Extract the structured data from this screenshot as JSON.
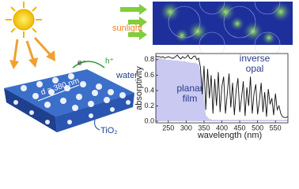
{
  "illustration": {
    "sunlight": "sunlight",
    "electron": "e⁻",
    "hole": "h⁺",
    "water": "water",
    "spacing": "d = 380 nm",
    "material": "TiO₂"
  },
  "chart_data": {
    "type": "line",
    "xlabel": "wavelength (nm)",
    "ylabel": "absorptivity",
    "xlim": [
      215,
      585
    ],
    "ylim": [
      -0.02,
      0.88
    ],
    "xticks": [
      250,
      300,
      350,
      400,
      450,
      500,
      550
    ],
    "yticks": [
      {
        "value": 0,
        "label": "0.0"
      },
      0.2,
      0.4,
      0.6,
      0.8
    ],
    "series": [
      {
        "name": "planar film",
        "color": "#c9c9f2",
        "fill": true,
        "x": [
          215,
          225,
          235,
          245,
          255,
          265,
          275,
          285,
          295,
          305,
          315,
          325,
          335,
          345,
          355,
          365,
          375,
          385,
          395,
          405,
          415,
          425,
          435,
          445,
          455,
          465,
          475,
          485,
          495,
          505,
          515,
          525,
          535,
          545,
          555,
          565,
          575,
          585
        ],
        "values": [
          0.83,
          0.82,
          0.81,
          0.8,
          0.8,
          0.79,
          0.79,
          0.78,
          0.78,
          0.77,
          0.76,
          0.76,
          0.74,
          0.55,
          0.08,
          0.03,
          0.02,
          0.02,
          0.02,
          0.02,
          0.02,
          0.02,
          0.02,
          0.02,
          0.02,
          0.02,
          0.02,
          0.02,
          0.02,
          0.02,
          0.02,
          0.02,
          0.02,
          0.02,
          0.02,
          0.02,
          0.02,
          0.02
        ]
      },
      {
        "name": "inverse opal",
        "color": "#111111",
        "fill": false,
        "x": [
          215,
          220,
          225,
          230,
          235,
          240,
          245,
          250,
          255,
          260,
          265,
          270,
          275,
          280,
          285,
          290,
          295,
          300,
          305,
          310,
          315,
          320,
          325,
          330,
          335,
          340,
          345,
          350,
          355,
          360,
          365,
          370,
          375,
          380,
          385,
          390,
          395,
          400,
          405,
          410,
          415,
          420,
          425,
          430,
          435,
          440,
          445,
          450,
          455,
          460,
          465,
          470,
          475,
          480,
          485,
          490,
          495,
          500,
          505,
          510,
          515,
          520,
          525,
          530,
          535,
          540,
          545,
          550,
          555,
          560,
          565,
          570,
          575,
          580,
          585
        ],
        "values": [
          0.85,
          0.84,
          0.84,
          0.83,
          0.84,
          0.82,
          0.83,
          0.84,
          0.83,
          0.82,
          0.82,
          0.84,
          0.86,
          0.83,
          0.81,
          0.84,
          0.82,
          0.83,
          0.86,
          0.82,
          0.81,
          0.84,
          0.85,
          0.8,
          0.82,
          0.7,
          0.35,
          0.72,
          0.15,
          0.68,
          0.3,
          0.6,
          0.1,
          0.55,
          0.2,
          0.64,
          0.12,
          0.45,
          0.58,
          0.1,
          0.35,
          0.62,
          0.18,
          0.5,
          0.08,
          0.4,
          0.56,
          0.12,
          0.3,
          0.52,
          0.07,
          0.44,
          0.2,
          0.58,
          0.1,
          0.36,
          0.48,
          0.09,
          0.26,
          0.5,
          0.12,
          0.38,
          0.06,
          0.42,
          0.22,
          0.3,
          0.08,
          0.36,
          0.15,
          0.2,
          0.1,
          0.06,
          0.05,
          0.05,
          0.06
        ]
      }
    ]
  }
}
